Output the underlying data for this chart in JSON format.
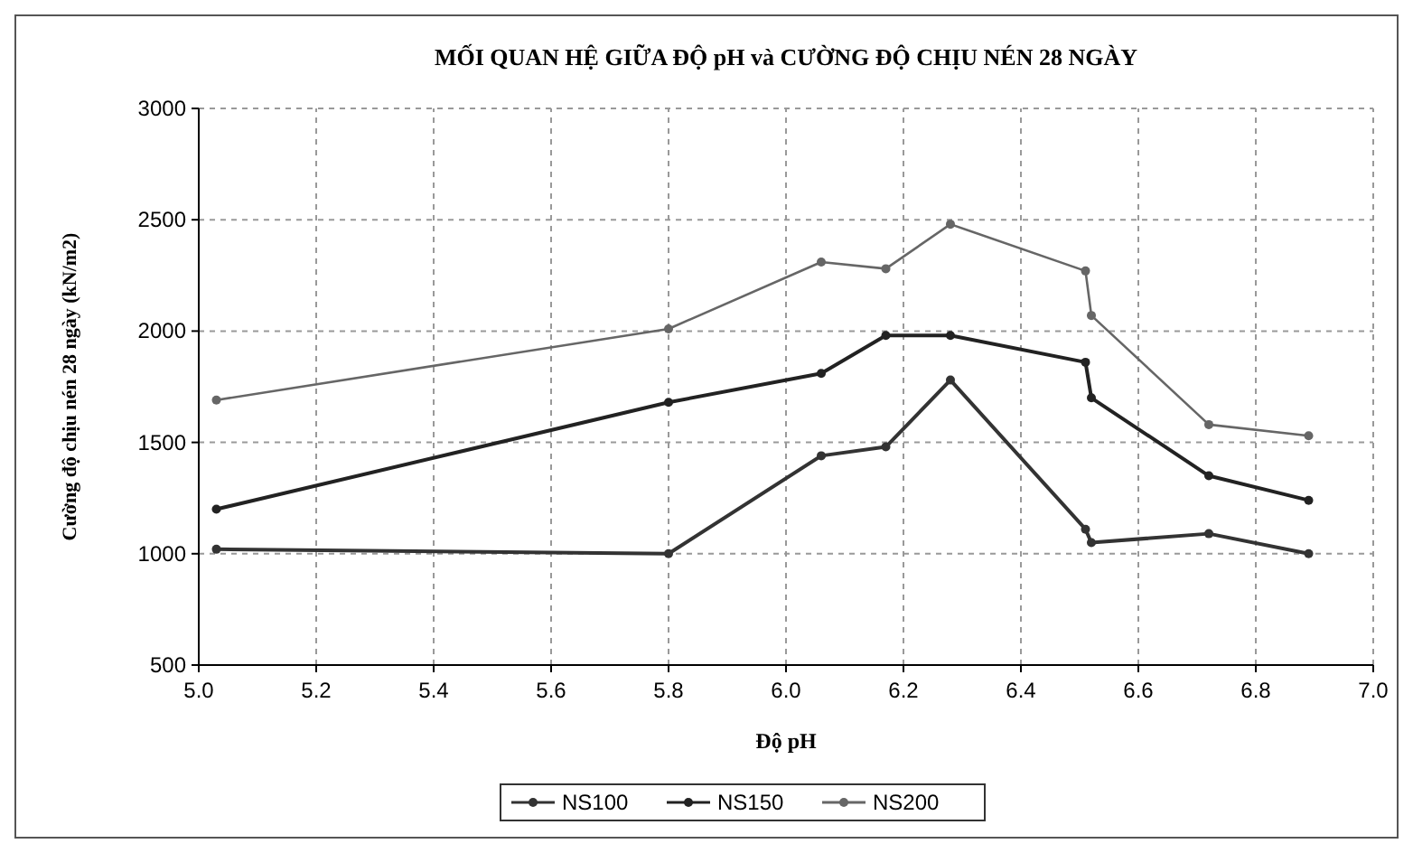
{
  "chart_data": {
    "type": "line",
    "title": "MỐI QUAN HỆ GIỮA ĐỘ pH và CƯỜNG ĐỘ CHỊU NÉN 28 NGÀY",
    "xlabel": "Độ pH",
    "ylabel": "Cường độ chịu nén 28 ngày (kN/m2)",
    "x": [
      5.03,
      5.8,
      6.06,
      6.17,
      6.28,
      6.51,
      6.52,
      6.72,
      6.89
    ],
    "series": [
      {
        "name": "NS100",
        "color": "#333333",
        "values": [
          1020,
          1000,
          1440,
          1480,
          1780,
          1110,
          1050,
          1090,
          1000
        ]
      },
      {
        "name": "NS150",
        "color": "#222222",
        "values": [
          1200,
          1680,
          1810,
          1980,
          1980,
          1860,
          1700,
          1350,
          1240
        ]
      },
      {
        "name": "NS200",
        "color": "#666666",
        "values": [
          1690,
          2010,
          2310,
          2280,
          2480,
          2270,
          2070,
          1580,
          1530
        ]
      }
    ],
    "xlim": [
      5.0,
      7.0
    ],
    "xticks": [
      {
        "value": 5.0,
        "label": "5.0"
      },
      5.2,
      5.4,
      5.6,
      5.8,
      {
        "value": 6.0,
        "label": "6.0"
      },
      6.2,
      6.4,
      6.6,
      6.8,
      {
        "value": 7.0,
        "label": "7.0"
      }
    ],
    "ylim": [
      500,
      3000
    ],
    "yticks": [
      500,
      1000,
      1500,
      2000,
      2500,
      3000
    ],
    "grid": true,
    "legend": "bottom",
    "marker": "circle",
    "line_style": "solid"
  }
}
